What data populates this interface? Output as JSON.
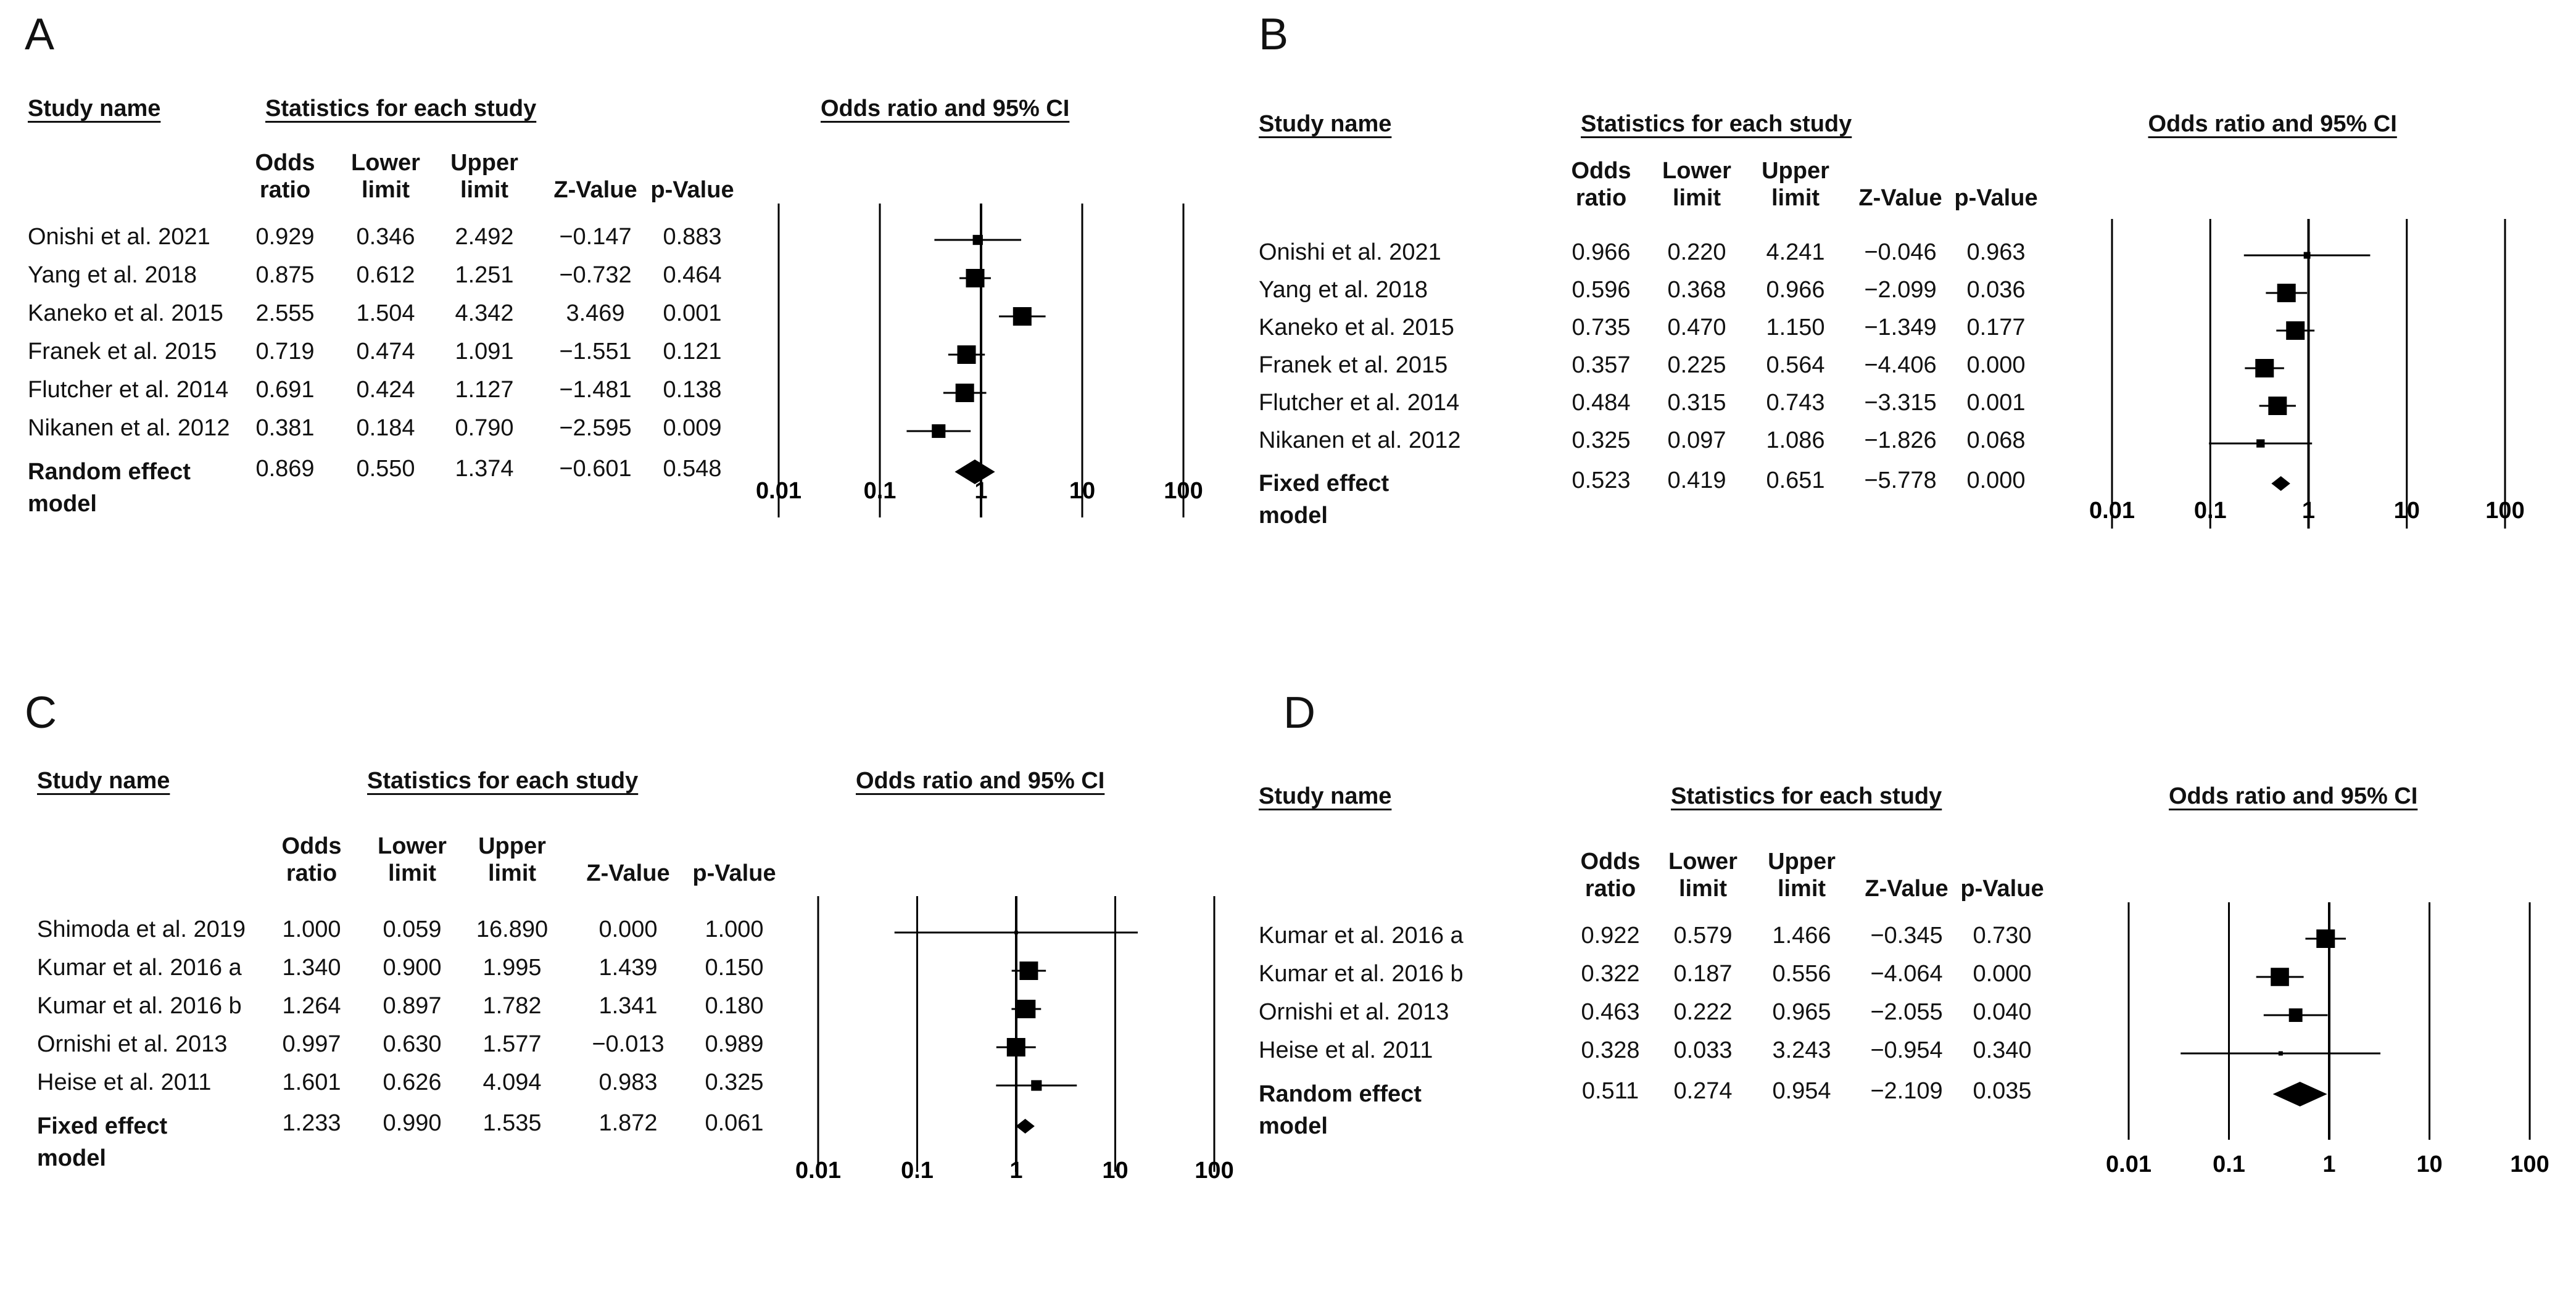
{
  "columns": {
    "study_name": "Study name",
    "stats_group": "Statistics for each study",
    "odds_ratio": "Odds\nratio",
    "lower": "Lower\nlimit",
    "upper": "Upper\nlimit",
    "z": "Z-Value",
    "p": "p-Value",
    "plot_title": "Odds ratio and 95% CI"
  },
  "chart_data": [
    {
      "type": "forest",
      "panel": "A",
      "title": "Odds ratio and 95% CI",
      "xscale": "log",
      "ticks": [
        "0.01",
        "0.1",
        "1",
        "10",
        "100"
      ],
      "xlim": [
        0.01,
        100
      ],
      "studies": [
        {
          "name": "Onishi et al. 2021",
          "or": "0.929",
          "lo": "0.346",
          "hi": "2.492",
          "z": "−0.147",
          "p": "0.883",
          "orv": 0.929,
          "lov": 0.346,
          "hiv": 2.492
        },
        {
          "name": "Yang et al. 2018",
          "or": "0.875",
          "lo": "0.612",
          "hi": "1.251",
          "z": "−0.732",
          "p": "0.464",
          "orv": 0.875,
          "lov": 0.612,
          "hiv": 1.251
        },
        {
          "name": "Kaneko et al. 2015",
          "or": "2.555",
          "lo": "1.504",
          "hi": "4.342",
          "z": "3.469",
          "p": "0.001",
          "orv": 2.555,
          "lov": 1.504,
          "hiv": 4.342
        },
        {
          "name": "Franek  et al. 2015",
          "or": "0.719",
          "lo": "0.474",
          "hi": "1.091",
          "z": "−1.551",
          "p": "0.121",
          "orv": 0.719,
          "lov": 0.474,
          "hiv": 1.091
        },
        {
          "name": "Flutcher et al. 2014",
          "or": "0.691",
          "lo": "0.424",
          "hi": "1.127",
          "z": "−1.481",
          "p": "0.138",
          "orv": 0.691,
          "lov": 0.424,
          "hiv": 1.127
        },
        {
          "name": "Nikanen et al. 2012",
          "or": "0.381",
          "lo": "0.184",
          "hi": "0.790",
          "z": "−2.595",
          "p": "0.009",
          "orv": 0.381,
          "lov": 0.184,
          "hiv": 0.79
        }
      ],
      "pooled": {
        "name": "Random effect\nmodel",
        "or": "0.869",
        "lo": "0.550",
        "hi": "1.374",
        "z": "−0.601",
        "p": "0.548",
        "orv": 0.869,
        "lov": 0.55,
        "hiv": 1.374
      }
    },
    {
      "type": "forest",
      "panel": "B",
      "title": "Odds ratio and 95% CI",
      "xscale": "log",
      "ticks": [
        "0.01",
        "0.1",
        "1",
        "10",
        "100"
      ],
      "xlim": [
        0.01,
        100
      ],
      "studies": [
        {
          "name": "Onishi et al. 2021",
          "or": "0.966",
          "lo": "0.220",
          "hi": "4.241",
          "z": "−0.046",
          "p": "0.963",
          "orv": 0.966,
          "lov": 0.22,
          "hiv": 4.241
        },
        {
          "name": "Yang et al. 2018",
          "or": "0.596",
          "lo": "0.368",
          "hi": "0.966",
          "z": "−2.099",
          "p": "0.036",
          "orv": 0.596,
          "lov": 0.368,
          "hiv": 0.966
        },
        {
          "name": "Kaneko et al. 2015",
          "or": "0.735",
          "lo": "0.470",
          "hi": "1.150",
          "z": "−1.349",
          "p": "0.177",
          "orv": 0.735,
          "lov": 0.47,
          "hiv": 1.15
        },
        {
          "name": "Franek  et al. 2015",
          "or": "0.357",
          "lo": "0.225",
          "hi": "0.564",
          "z": "−4.406",
          "p": "0.000",
          "orv": 0.357,
          "lov": 0.225,
          "hiv": 0.564
        },
        {
          "name": "Flutcher et al. 2014",
          "or": "0.484",
          "lo": "0.315",
          "hi": "0.743",
          "z": "−3.315",
          "p": "0.001",
          "orv": 0.484,
          "lov": 0.315,
          "hiv": 0.743
        },
        {
          "name": "Nikanen et al. 2012",
          "or": "0.325",
          "lo": "0.097",
          "hi": "1.086",
          "z": "−1.826",
          "p": "0.068",
          "orv": 0.325,
          "lov": 0.097,
          "hiv": 1.086
        }
      ],
      "pooled": {
        "name": "Fixed effect\nmodel",
        "or": "0.523",
        "lo": "0.419",
        "hi": "0.651",
        "z": "−5.778",
        "p": "0.000",
        "orv": 0.523,
        "lov": 0.419,
        "hiv": 0.651
      }
    },
    {
      "type": "forest",
      "panel": "C",
      "title": "Odds ratio and 95% CI",
      "xscale": "log",
      "ticks": [
        "0.01",
        "0.1",
        "1",
        "10",
        "100"
      ],
      "xlim": [
        0.01,
        100
      ],
      "studies": [
        {
          "name": "Shimoda et al. 2019",
          "or": "1.000",
          "lo": "0.059",
          "hi": "16.890",
          "z": "0.000",
          "p": "1.000",
          "orv": 1.0,
          "lov": 0.059,
          "hiv": 16.89
        },
        {
          "name": "Kumar et al. 2016 a",
          "or": "1.340",
          "lo": "0.900",
          "hi": "1.995",
          "z": "1.439",
          "p": "0.150",
          "orv": 1.34,
          "lov": 0.9,
          "hiv": 1.995
        },
        {
          "name": "Kumar et al. 2016 b",
          "or": "1.264",
          "lo": "0.897",
          "hi": "1.782",
          "z": "1.341",
          "p": "0.180",
          "orv": 1.264,
          "lov": 0.897,
          "hiv": 1.782
        },
        {
          "name": "Ornishi et al. 2013",
          "or": "0.997",
          "lo": "0.630",
          "hi": "1.577",
          "z": "−0.013",
          "p": "0.989",
          "orv": 0.997,
          "lov": 0.63,
          "hiv": 1.577
        },
        {
          "name": "Heise et al. 2011",
          "or": "1.601",
          "lo": "0.626",
          "hi": "4.094",
          "z": "0.983",
          "p": "0.325",
          "orv": 1.601,
          "lov": 0.626,
          "hiv": 4.094
        }
      ],
      "pooled": {
        "name": "Fixed effect\nmodel",
        "or": "1.233",
        "lo": "0.990",
        "hi": "1.535",
        "z": "1.872",
        "p": "0.061",
        "orv": 1.233,
        "lov": 0.99,
        "hiv": 1.535
      }
    },
    {
      "type": "forest",
      "panel": "D",
      "title": "Odds ratio and 95% CI",
      "xscale": "log",
      "ticks": [
        "0.01",
        "0.1",
        "1",
        "10",
        "100"
      ],
      "xlim": [
        0.01,
        100
      ],
      "studies": [
        {
          "name": "Kumar et al. 2016 a",
          "or": "0.922",
          "lo": "0.579",
          "hi": "1.466",
          "z": "−0.345",
          "p": "0.730",
          "orv": 0.922,
          "lov": 0.579,
          "hiv": 1.466
        },
        {
          "name": "Kumar et al. 2016 b",
          "or": "0.322",
          "lo": "0.187",
          "hi": "0.556",
          "z": "−4.064",
          "p": "0.000",
          "orv": 0.322,
          "lov": 0.187,
          "hiv": 0.556
        },
        {
          "name": "Ornishi et al. 2013",
          "or": "0.463",
          "lo": "0.222",
          "hi": "0.965",
          "z": "−2.055",
          "p": "0.040",
          "orv": 0.463,
          "lov": 0.222,
          "hiv": 0.965
        },
        {
          "name": "Heise et al. 2011",
          "or": "0.328",
          "lo": "0.033",
          "hi": "3.243",
          "z": "−0.954",
          "p": "0.340",
          "orv": 0.328,
          "lov": 0.033,
          "hiv": 3.243
        }
      ],
      "pooled": {
        "name": "Random effect\nmodel",
        "or": "0.511",
        "lo": "0.274",
        "hi": "0.954",
        "z": "−2.109",
        "p": "0.035",
        "orv": 0.511,
        "lov": 0.274,
        "hiv": 0.954
      }
    }
  ]
}
